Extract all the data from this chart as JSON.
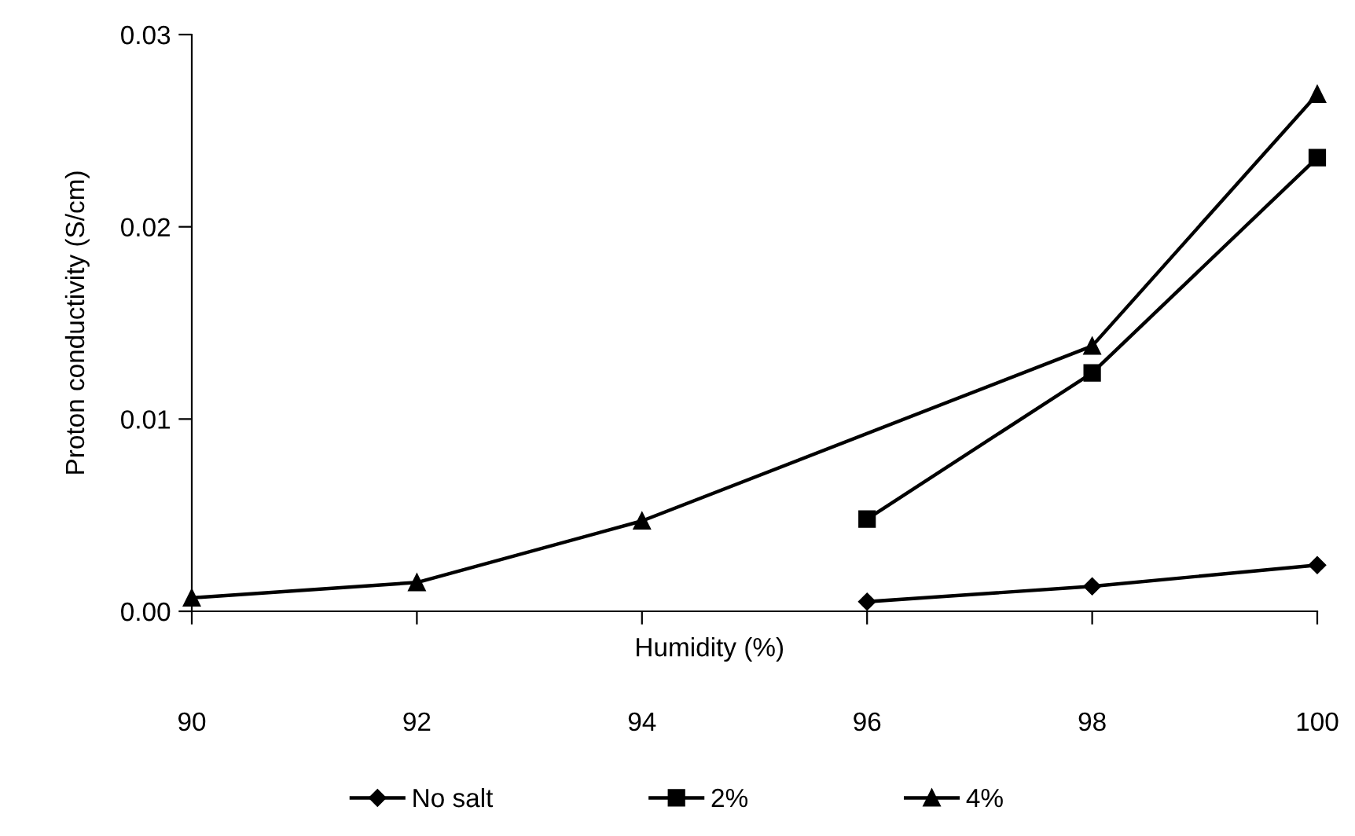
{
  "chart_data": {
    "type": "line",
    "xlabel": "Humidity (%)",
    "ylabel": "Proton conductivity (S/cm)",
    "xlim": [
      90,
      100
    ],
    "xticks": [
      90,
      92,
      94,
      96,
      98,
      100
    ],
    "ylim": [
      0,
      0.03
    ],
    "yticks": [
      {
        "value": 0,
        "label": "0.00"
      },
      {
        "value": 0.01,
        "label": "0.01"
      },
      {
        "value": 0.02,
        "label": "0.02"
      },
      {
        "value": 0.03,
        "label": "0.03"
      }
    ],
    "grid": false,
    "legend": "bottom",
    "line_style": "solid",
    "series": [
      {
        "name": "No salt",
        "color": "#000000",
        "marker": "diamond",
        "x": [
          96,
          98,
          100
        ],
        "values": [
          0.0005,
          0.0013,
          0.0024
        ]
      },
      {
        "name": "2%",
        "color": "#000000",
        "marker": "square",
        "x": [
          96,
          98,
          100
        ],
        "values": [
          0.0048,
          0.0124,
          0.0236
        ]
      },
      {
        "name": "4%",
        "color": "#000000",
        "marker": "triangle",
        "x": [
          90,
          92,
          94,
          98,
          100
        ],
        "values": [
          0.0007,
          0.0015,
          0.0047,
          0.0138,
          0.0269
        ]
      }
    ]
  }
}
